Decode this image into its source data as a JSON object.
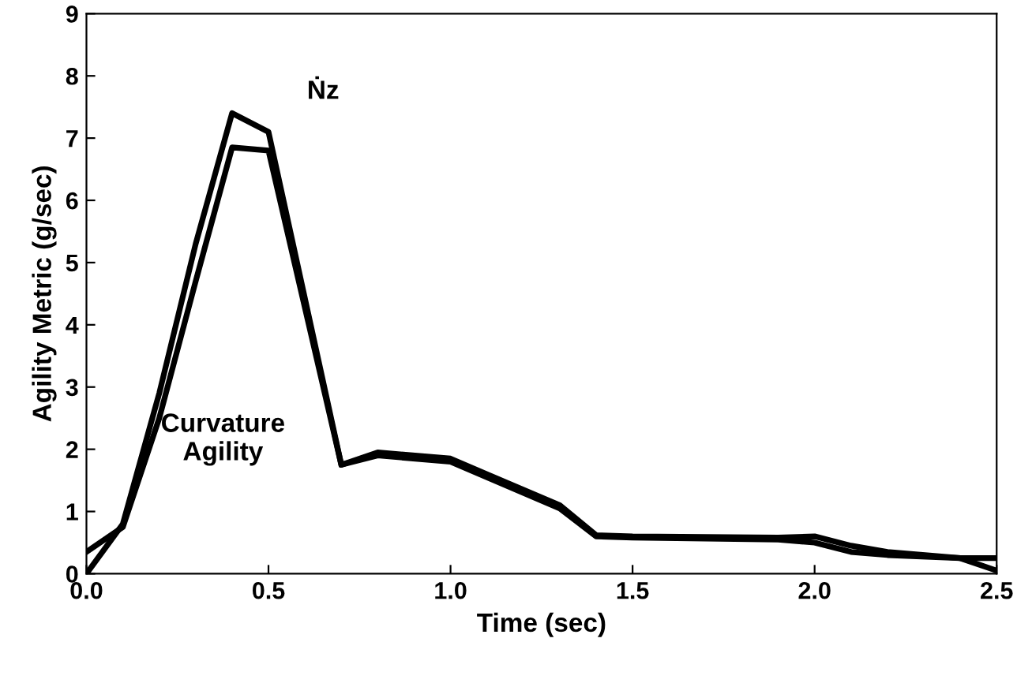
{
  "chart_data": {
    "type": "line",
    "xlabel": "Time (sec)",
    "ylabel": "Agility Metric (g/sec)",
    "xlim": [
      0,
      2.5
    ],
    "ylim": [
      0,
      9
    ],
    "xticks": [
      {
        "value": 0,
        "label": "0.0"
      },
      0.5,
      {
        "value": 1,
        "label": "1.0"
      },
      1.5,
      {
        "value": 2,
        "label": "2.0"
      },
      2.5
    ],
    "yticks": [
      0,
      1,
      2,
      3,
      4,
      5,
      6,
      7,
      8,
      9
    ],
    "x": [
      0,
      0.1,
      0.2,
      0.3,
      0.4,
      0.5,
      0.7,
      0.8,
      1.0,
      1.1,
      1.3,
      1.4,
      1.5,
      1.9,
      2.0,
      2.1,
      2.2,
      2.4,
      2.5
    ],
    "series": [
      {
        "color": "#000000",
        "values": [
          0,
          0.8,
          2.9,
          5.3,
          7.4,
          7.1,
          1.75,
          1.95,
          1.85,
          1.6,
          1.1,
          0.62,
          0.6,
          0.58,
          0.6,
          0.45,
          0.35,
          0.25,
          0.05
        ]
      },
      {
        "color": "#000000",
        "values": [
          0.35,
          0.75,
          2.5,
          4.7,
          6.85,
          6.8,
          1.75,
          1.9,
          1.8,
          1.55,
          1.05,
          0.6,
          0.58,
          0.55,
          0.5,
          0.35,
          0.3,
          0.25,
          0.25
        ]
      }
    ],
    "annotations": [
      "Ṅz",
      "Curvature Agility"
    ],
    "grid": false,
    "legend": false,
    "marker": "none",
    "line_style": "solid"
  }
}
